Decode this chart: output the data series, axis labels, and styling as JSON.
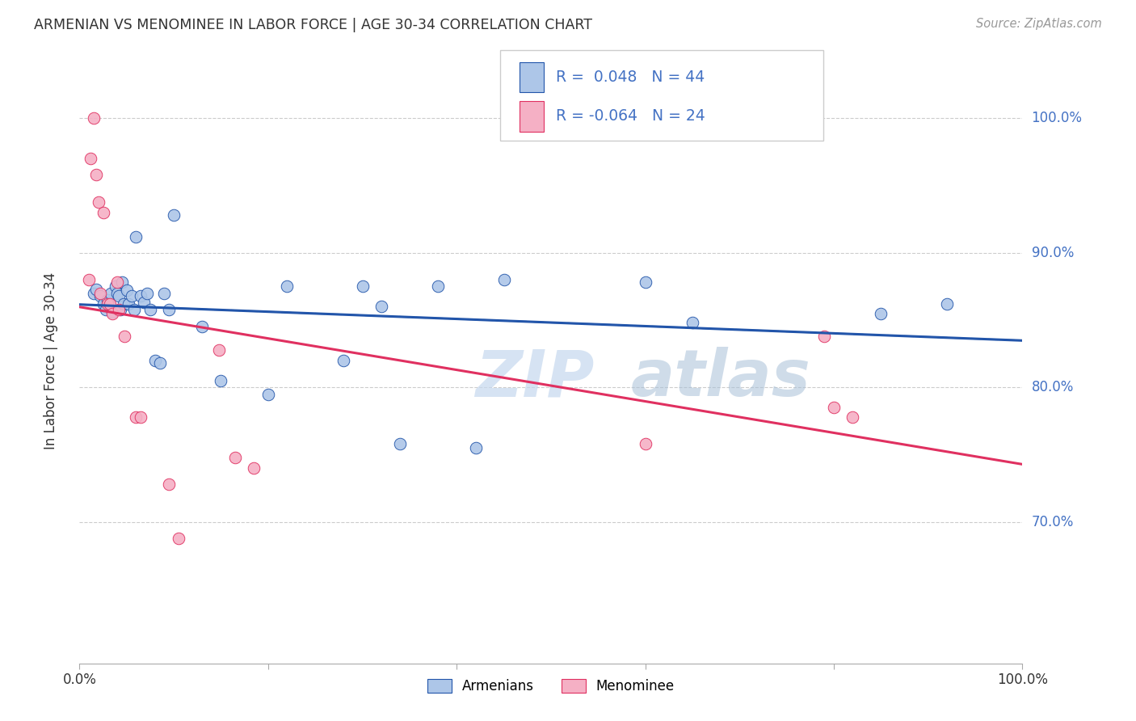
{
  "title": "ARMENIAN VS MENOMINEE IN LABOR FORCE | AGE 30-34 CORRELATION CHART",
  "source": "Source: ZipAtlas.com",
  "ylabel": "In Labor Force | Age 30-34",
  "watermark": "ZIPatlas",
  "legend_armenians": "Armenians",
  "legend_menominee": "Menominee",
  "r_armenian": 0.048,
  "n_armenian": 44,
  "r_menominee": -0.064,
  "n_menominee": 24,
  "ytick_labels": [
    "70.0%",
    "80.0%",
    "90.0%",
    "100.0%"
  ],
  "ytick_values": [
    0.7,
    0.8,
    0.9,
    1.0
  ],
  "xlim": [
    0.0,
    1.0
  ],
  "ylim": [
    0.595,
    1.045
  ],
  "armenian_color": "#adc6e8",
  "armenian_line_color": "#2255aa",
  "menominee_color": "#f5b0c5",
  "menominee_line_color": "#e03060",
  "background_color": "#ffffff",
  "grid_color": "#cccccc",
  "blue_text_color": "#4472c4",
  "armenian_x": [
    0.015,
    0.018,
    0.022,
    0.025,
    0.028,
    0.03,
    0.032,
    0.033,
    0.035,
    0.038,
    0.04,
    0.042,
    0.043,
    0.045,
    0.047,
    0.05,
    0.052,
    0.055,
    0.058,
    0.06,
    0.065,
    0.068,
    0.072,
    0.075,
    0.08,
    0.085,
    0.09,
    0.095,
    0.1,
    0.13,
    0.15,
    0.2,
    0.22,
    0.28,
    0.3,
    0.32,
    0.34,
    0.38,
    0.42,
    0.45,
    0.6,
    0.65,
    0.85,
    0.92
  ],
  "armenian_y": [
    0.87,
    0.873,
    0.868,
    0.862,
    0.858,
    0.865,
    0.86,
    0.87,
    0.856,
    0.875,
    0.87,
    0.868,
    0.858,
    0.878,
    0.862,
    0.872,
    0.862,
    0.868,
    0.858,
    0.912,
    0.868,
    0.863,
    0.87,
    0.858,
    0.82,
    0.818,
    0.87,
    0.858,
    0.928,
    0.845,
    0.805,
    0.795,
    0.875,
    0.82,
    0.875,
    0.86,
    0.758,
    0.875,
    0.755,
    0.88,
    0.878,
    0.848,
    0.855,
    0.862
  ],
  "menominee_x": [
    0.01,
    0.012,
    0.015,
    0.018,
    0.02,
    0.022,
    0.025,
    0.03,
    0.032,
    0.035,
    0.04,
    0.042,
    0.048,
    0.06,
    0.065,
    0.095,
    0.105,
    0.148,
    0.165,
    0.185,
    0.6,
    0.79,
    0.8,
    0.82
  ],
  "menominee_y": [
    0.88,
    0.97,
    1.0,
    0.958,
    0.938,
    0.87,
    0.93,
    0.862,
    0.862,
    0.855,
    0.878,
    0.858,
    0.838,
    0.778,
    0.778,
    0.728,
    0.688,
    0.828,
    0.748,
    0.74,
    0.758,
    0.838,
    0.785,
    0.778
  ]
}
